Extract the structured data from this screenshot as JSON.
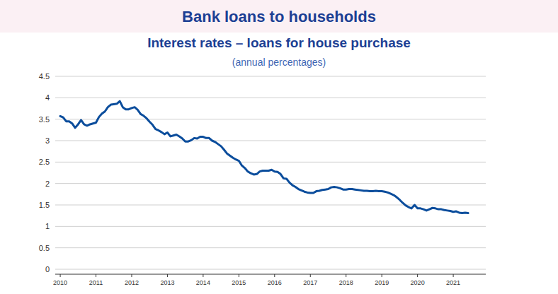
{
  "chart_data": {
    "type": "line",
    "title": "Bank loans to households",
    "subtitle": "Interest rates – loans for house purchase",
    "y_label": "(annual percentages)",
    "color": "#0b4d9c",
    "grid": true,
    "xlim": [
      2009.86,
      2021.91
    ],
    "xticks": [
      2010,
      2011,
      2012,
      2013,
      2014,
      2015,
      2016,
      2017,
      2018,
      2019,
      2020,
      2021
    ],
    "ylim": [
      0,
      4.5
    ],
    "yticks": [
      0,
      0.5,
      1,
      1.5,
      2,
      2.5,
      3,
      3.5,
      4,
      4.5
    ],
    "x": [
      2010,
      2010.083,
      2010.167,
      2010.25,
      2010.333,
      2010.417,
      2010.5,
      2010.583,
      2010.667,
      2010.75,
      2010.833,
      2010.917,
      2011,
      2011.083,
      2011.167,
      2011.25,
      2011.333,
      2011.417,
      2011.5,
      2011.583,
      2011.667,
      2011.75,
      2011.833,
      2011.917,
      2012,
      2012.083,
      2012.167,
      2012.25,
      2012.333,
      2012.417,
      2012.5,
      2012.583,
      2012.667,
      2012.75,
      2012.833,
      2012.917,
      2013,
      2013.083,
      2013.167,
      2013.25,
      2013.333,
      2013.417,
      2013.5,
      2013.583,
      2013.667,
      2013.75,
      2013.833,
      2013.917,
      2014,
      2014.083,
      2014.167,
      2014.25,
      2014.333,
      2014.417,
      2014.5,
      2014.583,
      2014.667,
      2014.75,
      2014.833,
      2014.917,
      2015,
      2015.083,
      2015.167,
      2015.25,
      2015.333,
      2015.417,
      2015.5,
      2015.583,
      2015.667,
      2015.75,
      2015.833,
      2015.917,
      2016,
      2016.083,
      2016.167,
      2016.25,
      2016.333,
      2016.417,
      2016.5,
      2016.583,
      2016.667,
      2016.75,
      2016.833,
      2016.917,
      2017,
      2017.083,
      2017.167,
      2017.25,
      2017.333,
      2017.417,
      2017.5,
      2017.583,
      2017.667,
      2017.75,
      2017.833,
      2017.917,
      2018,
      2018.083,
      2018.167,
      2018.25,
      2018.333,
      2018.417,
      2018.5,
      2018.583,
      2018.667,
      2018.75,
      2018.833,
      2018.917,
      2019,
      2019.083,
      2019.167,
      2019.25,
      2019.333,
      2019.417,
      2019.5,
      2019.583,
      2019.667,
      2019.75,
      2019.833,
      2019.917,
      2020,
      2020.083,
      2020.167,
      2020.25,
      2020.333,
      2020.417,
      2020.5,
      2020.583,
      2020.667,
      2020.75,
      2020.833,
      2020.917,
      2021,
      2021.083,
      2021.167,
      2021.25,
      2021.333,
      2021.417
    ],
    "values": [
      3.57,
      3.54,
      3.45,
      3.45,
      3.4,
      3.3,
      3.38,
      3.48,
      3.38,
      3.35,
      3.38,
      3.4,
      3.42,
      3.55,
      3.63,
      3.68,
      3.78,
      3.84,
      3.85,
      3.86,
      3.92,
      3.78,
      3.73,
      3.73,
      3.76,
      3.78,
      3.72,
      3.62,
      3.58,
      3.52,
      3.44,
      3.37,
      3.27,
      3.24,
      3.2,
      3.15,
      3.19,
      3.1,
      3.12,
      3.14,
      3.1,
      3.05,
      2.98,
      2.98,
      3.01,
      3.06,
      3.05,
      3.09,
      3.09,
      3.06,
      3.06,
      3.0,
      2.97,
      2.92,
      2.87,
      2.79,
      2.7,
      2.65,
      2.6,
      2.56,
      2.53,
      2.42,
      2.36,
      2.28,
      2.24,
      2.21,
      2.22,
      2.28,
      2.3,
      2.3,
      2.3,
      2.32,
      2.28,
      2.27,
      2.22,
      2.12,
      2.11,
      2.02,
      1.96,
      1.92,
      1.87,
      1.84,
      1.81,
      1.79,
      1.78,
      1.78,
      1.82,
      1.83,
      1.85,
      1.86,
      1.87,
      1.91,
      1.92,
      1.91,
      1.89,
      1.86,
      1.86,
      1.87,
      1.87,
      1.86,
      1.85,
      1.84,
      1.83,
      1.83,
      1.82,
      1.82,
      1.83,
      1.82,
      1.82,
      1.81,
      1.79,
      1.76,
      1.73,
      1.68,
      1.62,
      1.55,
      1.49,
      1.45,
      1.42,
      1.5,
      1.42,
      1.42,
      1.4,
      1.37,
      1.4,
      1.43,
      1.42,
      1.4,
      1.4,
      1.38,
      1.37,
      1.36,
      1.34,
      1.35,
      1.32,
      1.31,
      1.32,
      1.31
    ]
  }
}
